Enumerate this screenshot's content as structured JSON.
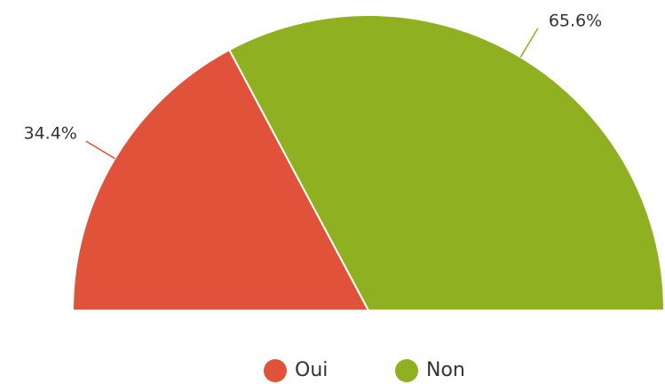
{
  "chart_data": {
    "type": "pie",
    "semicircle": true,
    "categories": [
      "Oui",
      "Non"
    ],
    "values": [
      34.4,
      65.6
    ],
    "value_labels": [
      "34.4%",
      "65.6%"
    ],
    "colors": [
      "#e0533a",
      "#8fb021"
    ]
  }
}
